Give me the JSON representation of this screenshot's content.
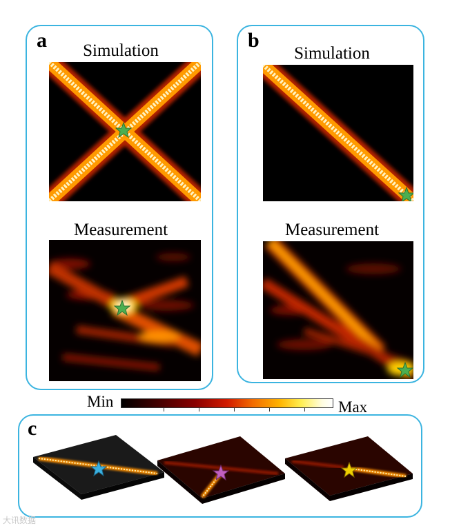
{
  "panels": {
    "a": {
      "letter": "a",
      "simulation_title": "Simulation",
      "measurement_title": "Measurement"
    },
    "b": {
      "letter": "b",
      "simulation_title": "Simulation",
      "measurement_title": "Measurement"
    },
    "c": {
      "letter": "c"
    }
  },
  "colorbar": {
    "min_label": "Min",
    "max_label": "Max"
  },
  "watermark": "大讯数据",
  "marker_colors": {
    "a": "#4caf50",
    "b": "#4caf50",
    "c1": "#3ab0e0",
    "c2": "#c060c0",
    "c3": "#f0d000"
  },
  "accent_color": "#3bb4e0"
}
